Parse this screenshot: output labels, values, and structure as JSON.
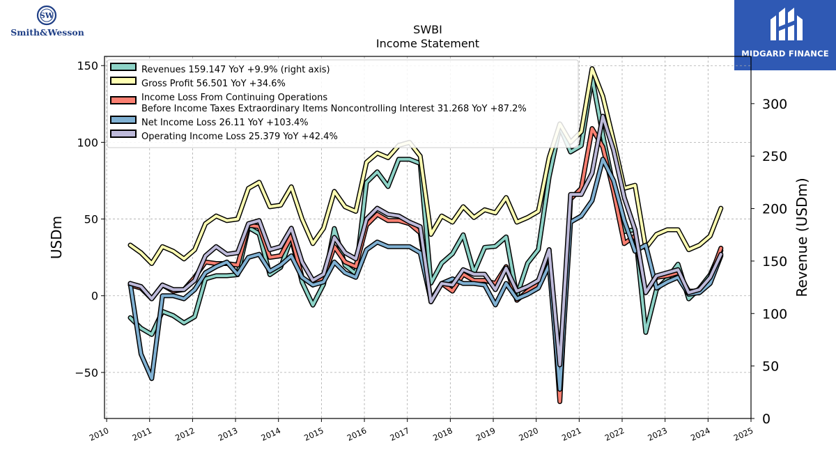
{
  "logos": {
    "left_text": "Smith&Wesson",
    "right_text": "MIDGARD FINANCE"
  },
  "chart_data": {
    "type": "line",
    "title": "SWBI",
    "subtitle": "Income Statement",
    "ylabel": "USDm",
    "y2label": "Revenue (USDm)",
    "ylim": [
      -80,
      156
    ],
    "y2lim": [
      0,
      345
    ],
    "xlim": [
      2009.95,
      2025.0
    ],
    "yticks": [
      -50,
      0,
      50,
      100,
      150
    ],
    "y2ticks": [
      0,
      50,
      100,
      150,
      200,
      250,
      300
    ],
    "xticks": [
      2010,
      2011,
      2012,
      2013,
      2014,
      2015,
      2016,
      2017,
      2018,
      2019,
      2020,
      2021,
      2022,
      2023,
      2024,
      2025
    ],
    "grid": true,
    "legend_position": "top-left",
    "x": [
      2010.55,
      2010.8,
      2011.05,
      2011.3,
      2011.55,
      2011.8,
      2012.05,
      2012.3,
      2012.55,
      2012.8,
      2013.05,
      2013.3,
      2013.55,
      2013.8,
      2014.05,
      2014.3,
      2014.55,
      2014.8,
      2015.05,
      2015.3,
      2015.55,
      2015.8,
      2016.05,
      2016.3,
      2016.55,
      2016.8,
      2017.05,
      2017.3,
      2017.55,
      2017.8,
      2018.05,
      2018.3,
      2018.55,
      2018.8,
      2019.05,
      2019.3,
      2019.55,
      2019.8,
      2020.05,
      2020.3,
      2020.55,
      2020.8,
      2021.05,
      2021.3,
      2021.55,
      2021.8,
      2022.05,
      2022.3,
      2022.55,
      2022.8,
      2023.05,
      2023.3,
      2023.55,
      2023.8,
      2024.05,
      2024.3
    ],
    "series": [
      {
        "name": "Revenues  159.147 YoY +9.9% (right axis)",
        "axis": "right",
        "color": "#8dd3c7",
        "values": [
          96,
          86,
          80,
          102,
          98,
          91,
          97,
          133,
          136,
          136,
          137,
          182,
          176,
          137,
          144,
          172,
          130,
          108,
          128,
          181,
          146,
          138,
          225,
          235,
          221,
          247,
          247,
          243,
          129,
          148,
          157,
          175,
          139,
          163,
          164,
          173,
          117,
          148,
          161,
          230,
          278,
          254,
          260,
          325,
          270,
          220,
          178,
          180,
          82,
          123,
          133,
          147,
          114,
          124,
          137,
          160
        ]
      },
      {
        "name": "Gross Profit  56.501 YoY +34.6%",
        "axis": "left",
        "color": "#ffffb3",
        "values": [
          33,
          28,
          21,
          32,
          29,
          24,
          30,
          47,
          52,
          49,
          50,
          70,
          74,
          58,
          59,
          71,
          50,
          34,
          44,
          68,
          58,
          55,
          87,
          93,
          90,
          98,
          100,
          91,
          40,
          52,
          48,
          58,
          51,
          56,
          54,
          64,
          48,
          51,
          55,
          90,
          112,
          100,
          107,
          148,
          130,
          101,
          70,
          72,
          31,
          40,
          43,
          43,
          30,
          33,
          39,
          57
        ]
      },
      {
        "name": "Income Loss From Continuing Operations\nBefore Income Taxes Extraordinary Items Noncontrolling Interest  31.268 YoY +87.2%",
        "axis": "left",
        "color": "#fb8072",
        "values": [
          7,
          5,
          -2,
          7,
          3,
          4,
          12,
          22,
          21,
          21,
          20,
          46,
          45,
          25,
          26,
          39,
          12,
          7,
          12,
          32,
          22,
          19,
          46,
          53,
          49,
          49,
          47,
          41,
          -4,
          8,
          3,
          14,
          10,
          10,
          8,
          19,
          -3,
          3,
          8,
          30,
          -69,
          63,
          70,
          109,
          97,
          68,
          34,
          39,
          2,
          12,
          13,
          15,
          3,
          3,
          12,
          31
        ]
      },
      {
        "name": "Net Income Loss  26.11 YoY +103.4%",
        "axis": "left",
        "color": "#80b1d3",
        "values": [
          8,
          -38,
          -54,
          0,
          0,
          -2,
          4,
          15,
          19,
          22,
          14,
          25,
          27,
          16,
          20,
          26,
          12,
          7,
          9,
          22,
          15,
          12,
          30,
          35,
          32,
          32,
          32,
          28,
          -3,
          8,
          11,
          8,
          8,
          7,
          -6,
          8,
          -2,
          1,
          5,
          20,
          -61,
          48,
          52,
          62,
          89,
          75,
          49,
          29,
          33,
          5,
          9,
          12,
          1,
          2,
          8,
          26
        ]
      },
      {
        "name": "Operating Income Loss  25.379 YoY +42.4%",
        "axis": "left",
        "color": "#bebada",
        "values": [
          8,
          6,
          -2,
          7,
          4,
          4,
          10,
          26,
          32,
          27,
          28,
          47,
          49,
          30,
          32,
          44,
          22,
          10,
          14,
          38,
          28,
          24,
          50,
          57,
          53,
          52,
          48,
          45,
          -4,
          8,
          7,
          17,
          14,
          14,
          4,
          18,
          3,
          6,
          10,
          30,
          -45,
          66,
          66,
          80,
          117,
          95,
          64,
          43,
          2,
          13,
          15,
          17,
          2,
          4,
          12,
          27
        ]
      }
    ]
  }
}
